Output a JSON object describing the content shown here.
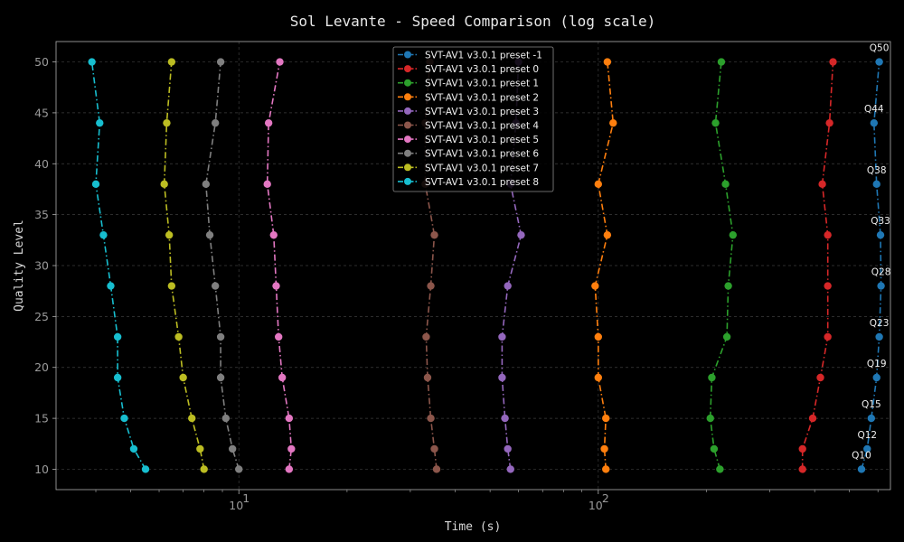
{
  "chart_data": {
    "type": "line",
    "title": "Sol Levante - Speed Comparison (log scale)",
    "xlabel": "Time (s)",
    "ylabel": "Quality Level",
    "x_scale": "log",
    "xlim": [
      3.1,
      650
    ],
    "ylim": [
      8,
      52
    ],
    "x_ticks": [
      {
        "value": 10,
        "base": "10",
        "exp": "1"
      },
      {
        "value": 100,
        "base": "10",
        "exp": "2"
      }
    ],
    "y_ticks": [
      10,
      15,
      20,
      25,
      30,
      35,
      40,
      45,
      50
    ],
    "grid": true,
    "legend_position": "top-center",
    "quality_levels": [
      10,
      12,
      15,
      19,
      23,
      28,
      33,
      38,
      44,
      50
    ],
    "annotations": [
      {
        "text": "Q10",
        "x": 540,
        "y": 10
      },
      {
        "text": "Q12",
        "x": 560,
        "y": 12
      },
      {
        "text": "Q15",
        "x": 575,
        "y": 15
      },
      {
        "text": "Q19",
        "x": 595,
        "y": 19
      },
      {
        "text": "Q23",
        "x": 605,
        "y": 23
      },
      {
        "text": "Q28",
        "x": 612,
        "y": 28
      },
      {
        "text": "Q33",
        "x": 610,
        "y": 33
      },
      {
        "text": "Q38",
        "x": 595,
        "y": 38
      },
      {
        "text": "Q44",
        "x": 585,
        "y": 44
      },
      {
        "text": "Q50",
        "x": 605,
        "y": 50
      }
    ],
    "series": [
      {
        "name": "SVT-AV1 v3.0.1 preset -1",
        "color": "#1f77b4",
        "x": [
          540,
          560,
          575,
          595,
          605,
          612,
          610,
          595,
          585,
          605
        ]
      },
      {
        "name": "SVT-AV1 v3.0.1 preset 0",
        "color": "#d62728",
        "x": [
          370,
          370,
          395,
          415,
          435,
          435,
          435,
          420,
          440,
          450
        ]
      },
      {
        "name": "SVT-AV1 v3.0.1 preset 1",
        "color": "#2ca02c",
        "x": [
          218,
          210,
          205,
          207,
          228,
          230,
          237,
          226,
          212,
          220
        ]
      },
      {
        "name": "SVT-AV1 v3.0.1 preset 2",
        "color": "#ff7f0e",
        "x": [
          105,
          104,
          105,
          100,
          100,
          98,
          106,
          100,
          110,
          106
        ]
      },
      {
        "name": "SVT-AV1 v3.0.1 preset 3",
        "color": "#9467bd",
        "x": [
          57,
          56,
          55,
          54,
          54,
          56,
          61,
          57,
          59,
          60
        ]
      },
      {
        "name": "SVT-AV1 v3.0.1 preset 4",
        "color": "#8c564b",
        "x": [
          35.5,
          35,
          34.2,
          33.5,
          33.2,
          34.2,
          35,
          33,
          33,
          34
        ]
      },
      {
        "name": "SVT-AV1 v3.0.1 preset 5",
        "color": "#e377c2",
        "x": [
          13.8,
          14,
          13.8,
          13.2,
          12.9,
          12.7,
          12.5,
          12,
          12.1,
          13
        ]
      },
      {
        "name": "SVT-AV1 v3.0.1 preset 6",
        "color": "#7f7f7f",
        "x": [
          10,
          9.6,
          9.2,
          8.9,
          8.9,
          8.6,
          8.3,
          8.1,
          8.6,
          8.9
        ]
      },
      {
        "name": "SVT-AV1 v3.0.1 preset 7",
        "color": "#bcbd22",
        "x": [
          8,
          7.8,
          7.4,
          7,
          6.8,
          6.5,
          6.4,
          6.2,
          6.3,
          6.5
        ]
      },
      {
        "name": "SVT-AV1 v3.0.1 preset 8",
        "color": "#17becf",
        "x": [
          5.5,
          5.1,
          4.8,
          4.6,
          4.6,
          4.4,
          4.2,
          4,
          4.1,
          3.9
        ]
      }
    ]
  }
}
